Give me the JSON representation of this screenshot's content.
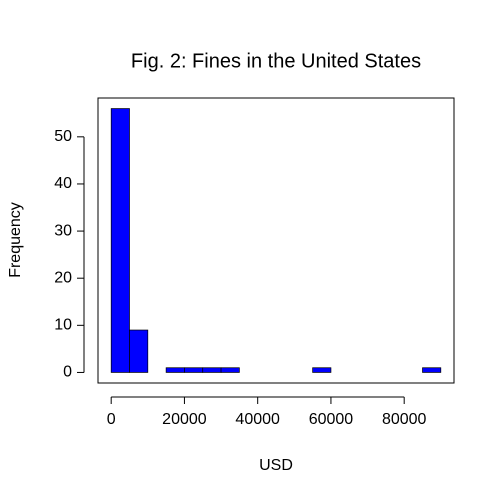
{
  "chart_data": {
    "type": "histogram",
    "title": "Fig. 2: Fines in the United States",
    "x_label": "USD",
    "y_label": "Frequency",
    "bins": [
      0,
      5000,
      10000,
      15000,
      20000,
      25000,
      30000,
      35000,
      40000,
      45000,
      50000,
      55000,
      60000,
      65000,
      70000,
      75000,
      80000,
      85000,
      90000
    ],
    "counts": [
      56,
      9,
      0,
      1,
      1,
      1,
      1,
      0,
      0,
      0,
      0,
      1,
      0,
      0,
      0,
      0,
      0,
      1
    ],
    "color": "#0000ff",
    "xlim": [
      -3600,
      93600
    ],
    "ylim": [
      -2.24,
      58.24
    ],
    "xticks": [
      0,
      20000,
      40000,
      60000,
      80000
    ],
    "yticks": [
      0,
      10,
      20,
      30,
      40,
      50
    ]
  }
}
